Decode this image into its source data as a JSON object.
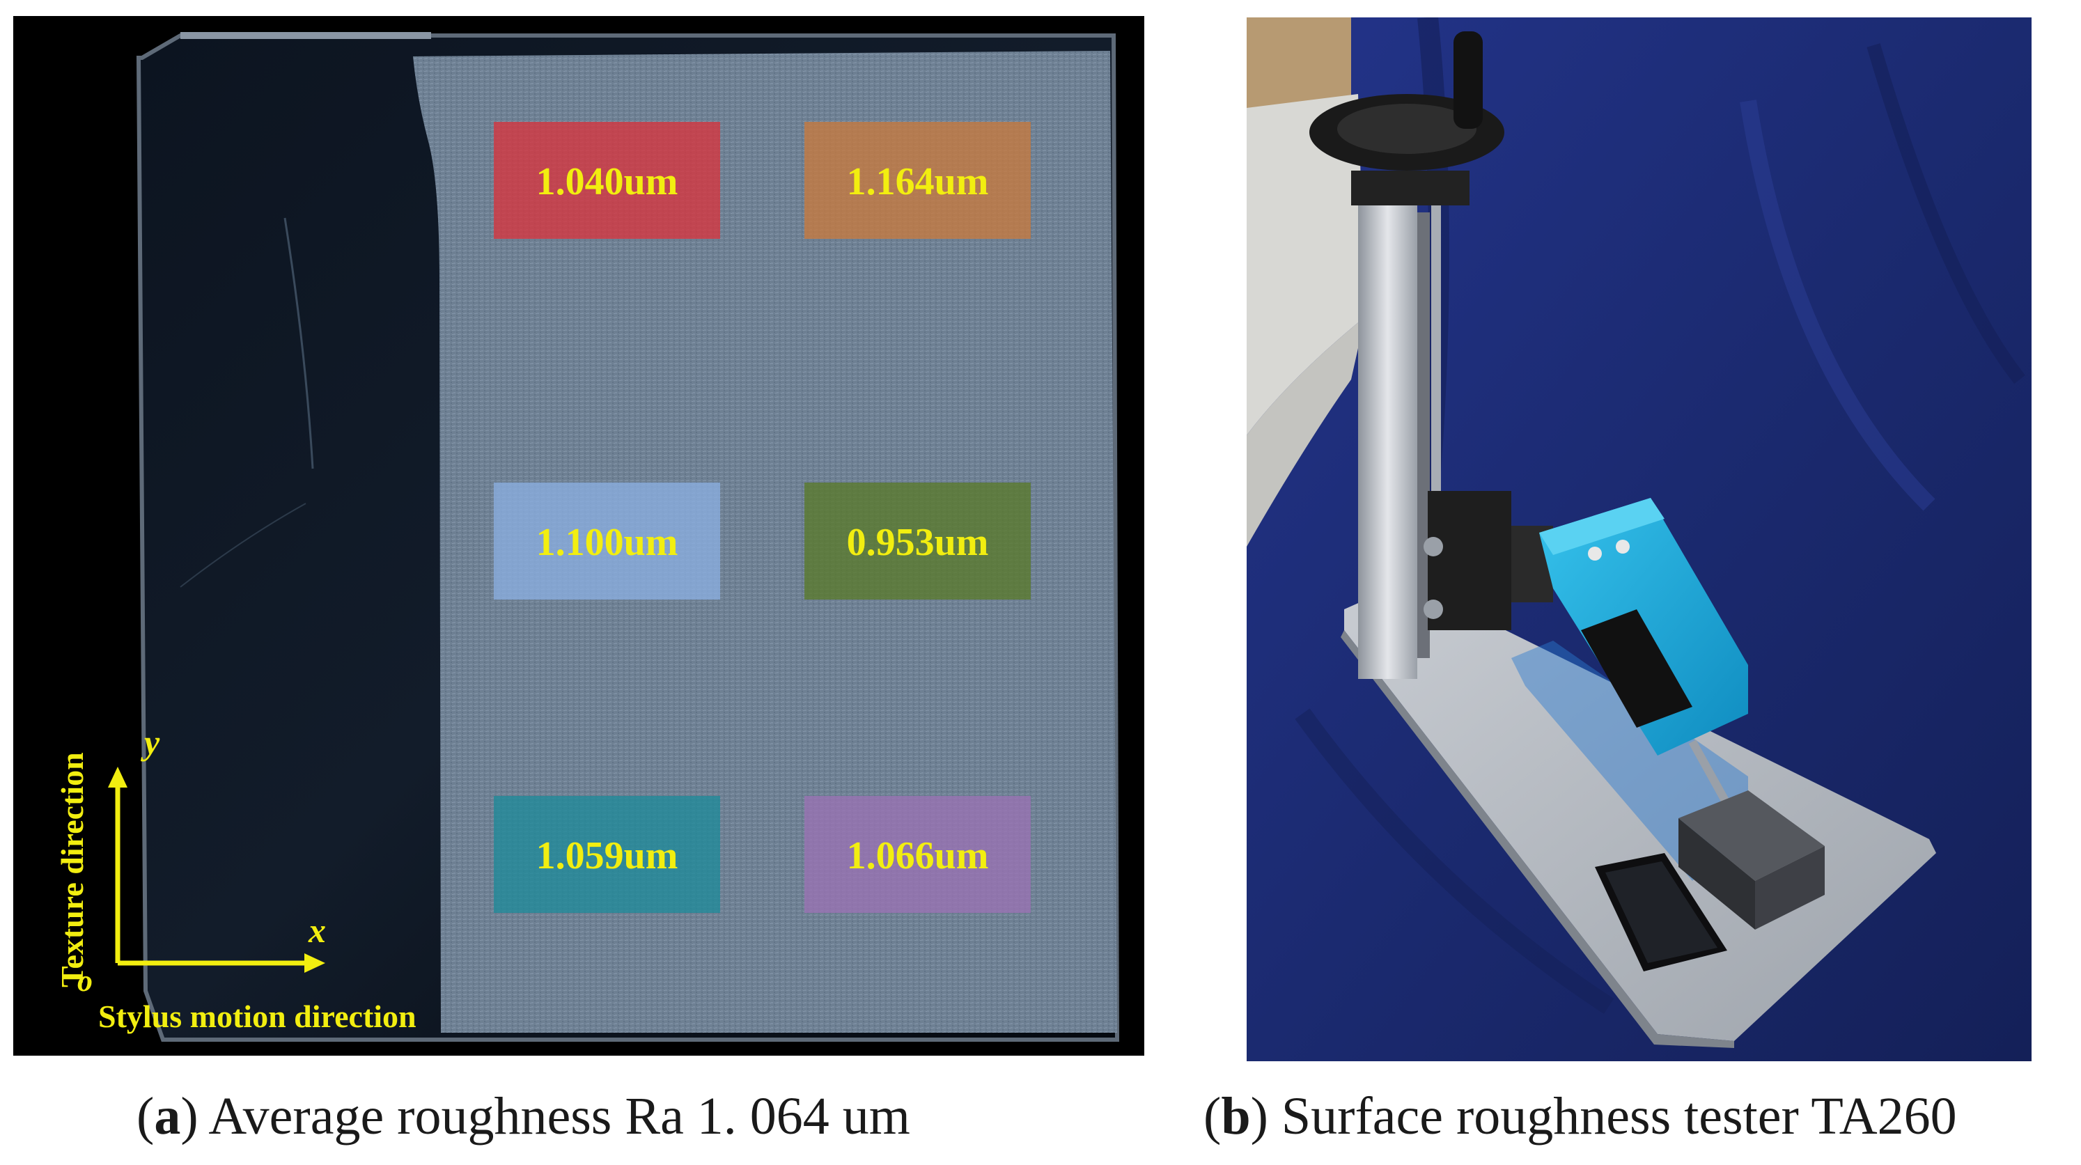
{
  "panel_a": {
    "measurements": [
      "1.040um",
      "1.164um",
      "1.100um",
      "0.953um",
      "1.059um",
      "1.066um"
    ],
    "patch_colors": [
      "#d8353e",
      "#c87a3e",
      "#8aaee0",
      "#5a7a2a",
      "#1f8a9a",
      "#9a72b4"
    ],
    "label_color": "#f2ee10",
    "axis": {
      "y_label": "y",
      "x_label": "x",
      "origin_label": "o",
      "y_direction_label": "Texture direction",
      "x_direction_label": "Stylus motion direction"
    }
  },
  "captions": {
    "a": {
      "letter": "a",
      "text": " Average roughness Ra 1. 064 um"
    },
    "b": {
      "letter": "b",
      "text": " Surface roughness tester TA260"
    }
  },
  "colors": {
    "background_a": "#000000",
    "sample_surface": "#6e7f92",
    "cloth": "#1c2a72",
    "base_plate": "#b9bec4",
    "tester_body": "#1aa8d8",
    "arrow": "#f2ee10"
  }
}
